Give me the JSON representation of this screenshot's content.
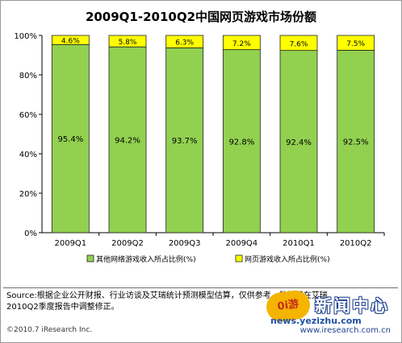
{
  "chart_data": {
    "type": "bar",
    "stacked": true,
    "percent": true,
    "title": "2009Q1-2010Q2中国网页游戏市场份额",
    "categories": [
      "2009Q1",
      "2009Q2",
      "2009Q3",
      "2009Q4",
      "2010Q1",
      "2010Q2"
    ],
    "series": [
      {
        "name": "其他网络游戏收入所占比例(%)",
        "values": [
          95.4,
          94.2,
          93.7,
          92.8,
          92.4,
          92.5
        ],
        "labels": [
          "95.4%",
          "94.2%",
          "93.7%",
          "92.8%",
          "92.4%",
          "92.5%"
        ],
        "color": "#92d050"
      },
      {
        "name": "网页游戏收入所占比例(%)",
        "values": [
          4.6,
          5.8,
          6.3,
          7.2,
          7.6,
          7.5
        ],
        "labels": [
          "4.6%",
          "5.8%",
          "6.3%",
          "7.2%",
          "7.6%",
          "7.5%"
        ],
        "color": "#ffff00"
      }
    ],
    "ylim": [
      0,
      100
    ],
    "yticks": [
      "0%",
      "20%",
      "40%",
      "60%",
      "80%",
      "100%"
    ],
    "grid": false,
    "legend_position": "bottom"
  },
  "footer": {
    "source_line1": "Source:根据企业公开财报、行业访谈及艾瑞统计预测模型估算，仅供参考。数据将在艾瑞",
    "source_line2": "2010Q2季度报告中调整修正。",
    "copyright": "©2010.7 iResearch Inc.",
    "website": "www.iresearch.com.cn"
  },
  "watermark": {
    "logo_text": "0i游",
    "text": "新闻中心",
    "url": "news.yezizhu.com"
  }
}
